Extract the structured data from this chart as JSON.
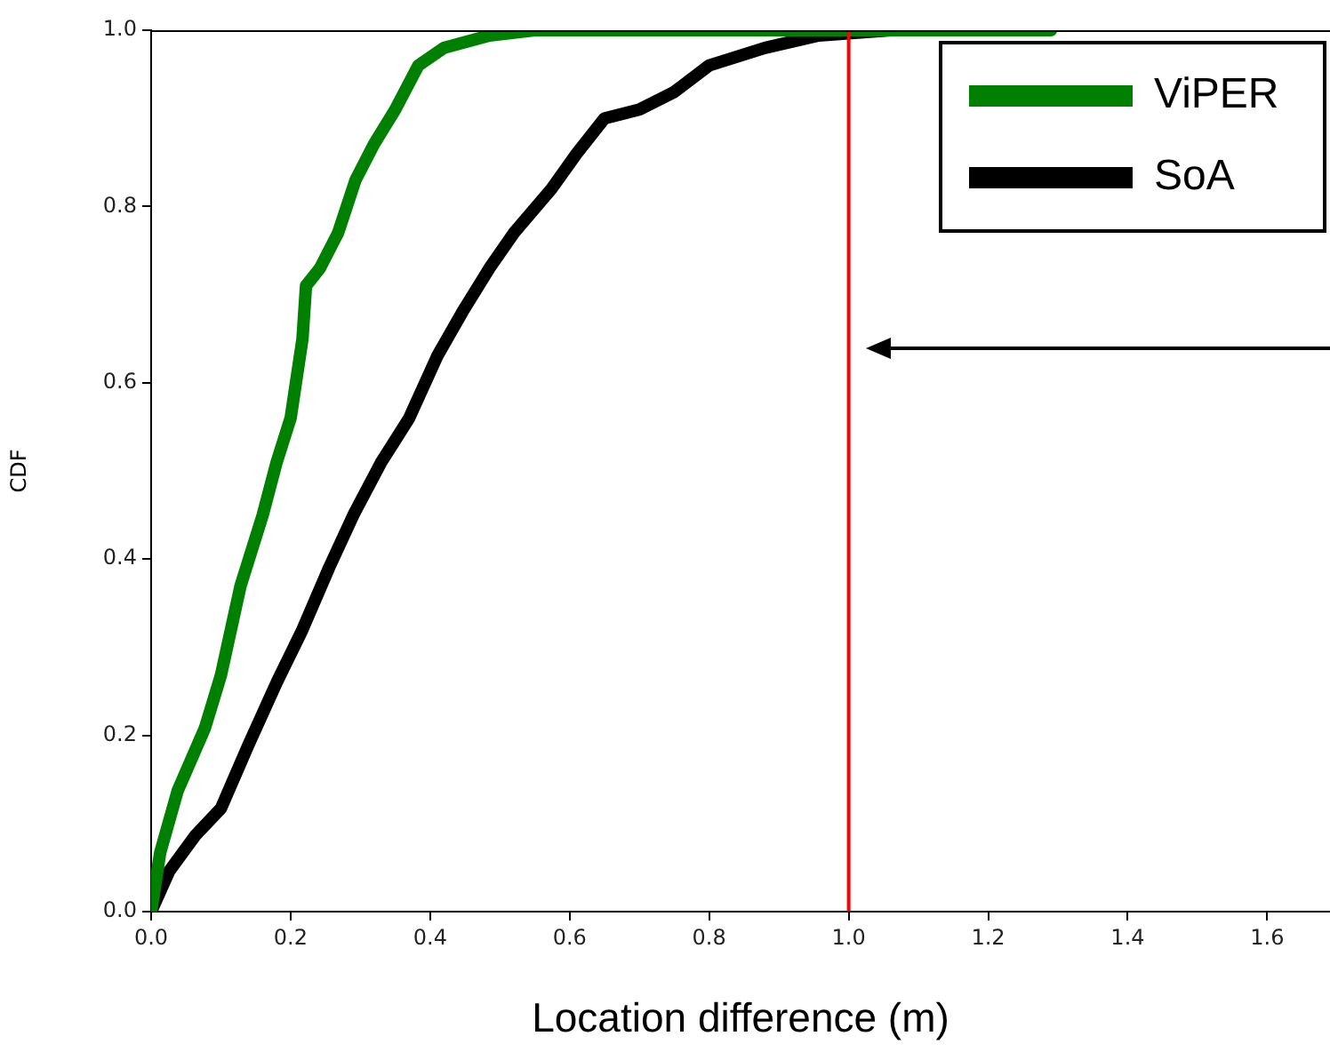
{
  "chart_data": {
    "type": "line",
    "xlabel": "Location difference (m)",
    "ylabel": "CDF",
    "xlim": [
      0,
      1.69
    ],
    "ylim": [
      0,
      1
    ],
    "xticks": [
      {
        "value": 0,
        "label": "0.0"
      },
      {
        "value": 0.2,
        "label": "0.2"
      },
      {
        "value": 0.4,
        "label": "0.4"
      },
      {
        "value": 0.6,
        "label": "0.6"
      },
      {
        "value": 0.8,
        "label": "0.8"
      },
      {
        "value": 1,
        "label": "1.0"
      },
      {
        "value": 1.2,
        "label": "1.2"
      },
      {
        "value": 1.4,
        "label": "1.4"
      },
      {
        "value": 1.6,
        "label": "1.6"
      }
    ],
    "yticks": [
      {
        "value": 0,
        "label": "0.0"
      },
      {
        "value": 0.2,
        "label": "0.2"
      },
      {
        "value": 0.4,
        "label": "0.4"
      },
      {
        "value": 0.6,
        "label": "0.6"
      },
      {
        "value": 0.8,
        "label": "0.8"
      },
      {
        "value": 1,
        "label": "1.0"
      }
    ],
    "grid": false,
    "legend": "top right",
    "marker": "none",
    "line_style": "solid",
    "series": [
      {
        "name": "ViPER",
        "color": "#008000",
        "x": [
          0,
          0.013,
          0.038,
          0.077,
          0.1,
          0.128,
          0.16,
          0.18,
          0.2,
          0.217,
          0.222,
          0.242,
          0.268,
          0.293,
          0.319,
          0.35,
          0.383,
          0.42,
          0.485,
          0.55,
          1.29
        ],
        "values": [
          0,
          0.067,
          0.137,
          0.208,
          0.268,
          0.369,
          0.45,
          0.51,
          0.56,
          0.65,
          0.71,
          0.73,
          0.77,
          0.83,
          0.87,
          0.91,
          0.96,
          0.98,
          0.994,
          1,
          1
        ]
      },
      {
        "name": "SoA",
        "color": "#000000",
        "x": [
          0,
          0.026,
          0.064,
          0.1,
          0.14,
          0.18,
          0.217,
          0.255,
          0.29,
          0.33,
          0.37,
          0.41,
          0.446,
          0.485,
          0.52,
          0.574,
          0.61,
          0.65,
          0.7,
          0.75,
          0.8,
          0.88,
          0.957,
          1.06,
          1.09
        ],
        "values": [
          0,
          0.046,
          0.087,
          0.117,
          0.19,
          0.26,
          0.32,
          0.39,
          0.45,
          0.51,
          0.56,
          0.63,
          0.68,
          0.73,
          0.77,
          0.82,
          0.86,
          0.9,
          0.91,
          0.93,
          0.96,
          0.98,
          0.994,
          1,
          1
        ]
      }
    ],
    "ref_lines": [
      {
        "axis": "x",
        "value": 1,
        "color": "#ff0000",
        "line_style": "solid"
      }
    ]
  }
}
